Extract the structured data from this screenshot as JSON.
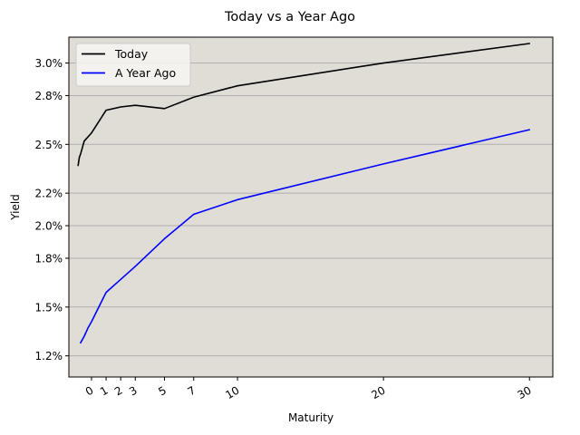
{
  "chart_data": {
    "type": "line",
    "title": "Today vs a Year Ago",
    "xlabel": "Maturity",
    "ylabel": "Yield",
    "x_ticks": [
      0,
      1,
      2,
      3,
      5,
      7,
      10,
      20,
      30
    ],
    "x_tick_labels": [
      "0",
      "1",
      "2",
      "3",
      "5",
      "7",
      "10",
      "20",
      "30"
    ],
    "x_tick_rotation_deg": 30,
    "xlim": [
      -1.55,
      31.6
    ],
    "y_ticks": [
      0.012,
      0.015,
      0.018,
      0.02,
      0.022,
      0.025,
      0.028,
      0.03
    ],
    "y_tick_labels": [
      "1.2%",
      "1.5%",
      "1.8%",
      "2.0%",
      "2.2%",
      "2.5%",
      "2.8%",
      "3.0%"
    ],
    "ylim": [
      0.0107,
      0.03159
    ],
    "grid": "horizontal",
    "legend_position": "top-left",
    "colors": {
      "plot_background": "#e0ddd6",
      "grid": "#b0b0b0",
      "legend_background": "#f7f6f3"
    },
    "series": [
      {
        "name": "Today",
        "color": "#000000",
        "x": [
          -0.917,
          -0.833,
          -0.75,
          -0.5,
          0,
          1,
          2,
          3,
          5,
          7,
          10,
          20,
          30
        ],
        "y": [
          0.0237,
          0.0242,
          0.0244,
          0.0252,
          0.0257,
          0.0271,
          0.0273,
          0.0274,
          0.0272,
          0.0279,
          0.0286,
          0.03,
          0.0312
        ]
      },
      {
        "name": "A Year Ago",
        "color": "#0000ff",
        "x": [
          -0.75,
          -0.5,
          -0.25,
          0,
          1,
          2,
          3,
          5,
          7,
          10,
          20,
          30
        ],
        "y": [
          0.0128,
          0.0132,
          0.0137,
          0.0141,
          0.0159,
          0.0167,
          0.0175,
          0.0192,
          0.0207,
          0.0216,
          0.0238,
          0.0259
        ]
      }
    ]
  }
}
